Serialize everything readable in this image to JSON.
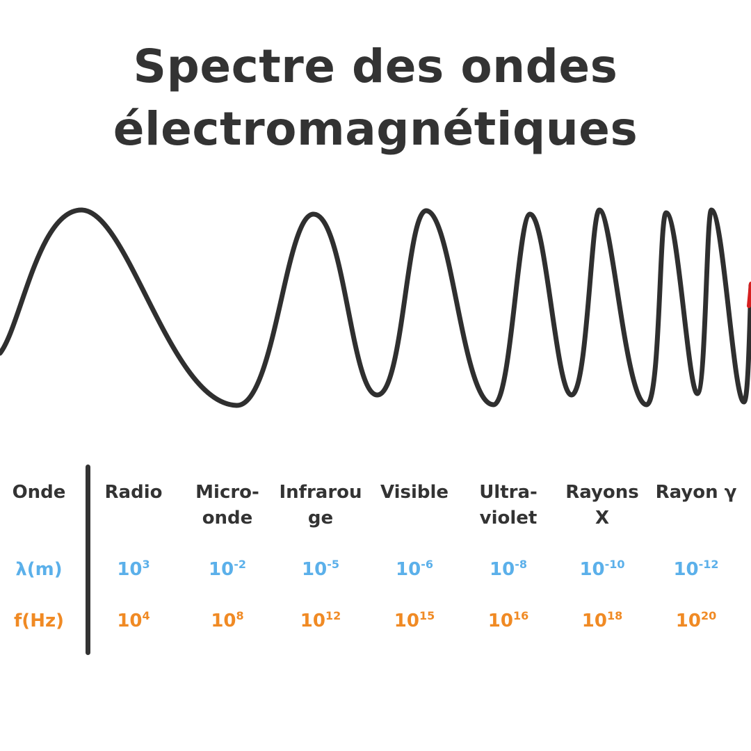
{
  "title": {
    "line1": "Spectre des ondes",
    "line2": "électromagnétiques"
  },
  "colors": {
    "text": "#333333",
    "lambda": "#5BB0EA",
    "frequency": "#F08A24",
    "wave": "#2f2f2f",
    "wave_end_accent": "#d61f1f"
  },
  "table": {
    "row_labels": {
      "wave": "Onde",
      "lambda": "λ(m)",
      "frequency": "f(Hz)"
    },
    "columns": [
      {
        "name": [
          "Radio"
        ],
        "lambda_base": "10",
        "lambda_exp": "3",
        "freq_base": "10",
        "freq_exp": "4"
      },
      {
        "name": [
          "Micro-",
          "onde"
        ],
        "lambda_base": "10",
        "lambda_exp": "-2",
        "freq_base": "10",
        "freq_exp": "8"
      },
      {
        "name": [
          "Infrarou",
          "ge"
        ],
        "lambda_base": "10",
        "lambda_exp": "-5",
        "freq_base": "10",
        "freq_exp": "12"
      },
      {
        "name": [
          "Visible"
        ],
        "lambda_base": "10",
        "lambda_exp": "-6",
        "freq_base": "10",
        "freq_exp": "15"
      },
      {
        "name": [
          "Ultra-",
          "violet"
        ],
        "lambda_base": "10",
        "lambda_exp": "-8",
        "freq_base": "10",
        "freq_exp": "16"
      },
      {
        "name": [
          "Rayons",
          "X"
        ],
        "lambda_base": "10",
        "lambda_exp": "-10",
        "freq_base": "10",
        "freq_exp": "18"
      },
      {
        "name": [
          "Rayon γ"
        ],
        "lambda_base": "10",
        "lambda_exp": "-12",
        "freq_base": "10",
        "freq_exp": "20"
      }
    ]
  }
}
